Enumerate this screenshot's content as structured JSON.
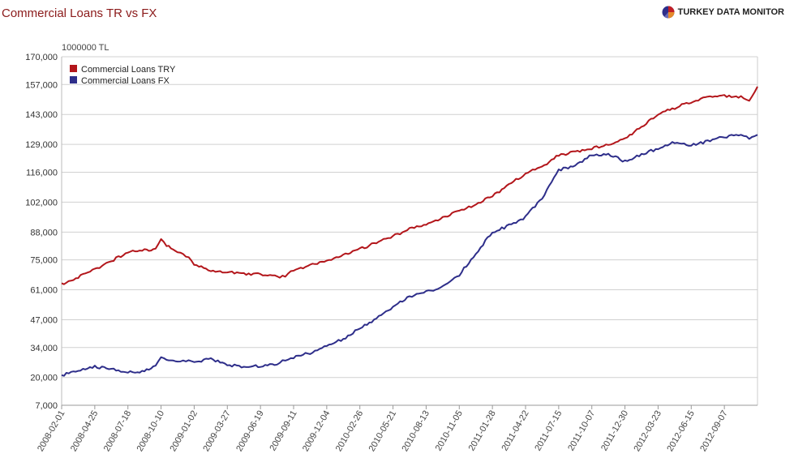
{
  "header": {
    "title": "Commercial Loans TR vs FX",
    "brand": "TURKEY DATA MONITOR",
    "brand_icon": "pie-chart-logo-icon"
  },
  "colors": {
    "title": "#8b1a1a",
    "try_series": "#b3161b",
    "fx_series": "#2e2e8a",
    "grid": "#d0d0d0"
  },
  "chart_data": {
    "type": "line",
    "ylabel": "1000000 TL",
    "ylim": [
      7000,
      170000
    ],
    "yticks": [
      "7,000",
      "20,000",
      "34,000",
      "47,000",
      "61,000",
      "75,000",
      "88,000",
      "102,000",
      "116,000",
      "129,000",
      "143,000",
      "157,000",
      "170,000"
    ],
    "ytick_values": [
      7000,
      20000,
      34000,
      47000,
      61000,
      75000,
      88000,
      102000,
      116000,
      129000,
      143000,
      157000,
      170000
    ],
    "xticks": [
      "2008-02-01",
      "2008-04-25",
      "2008-07-18",
      "2008-10-10",
      "2009-01-02",
      "2009-03-27",
      "2009-06-19",
      "2009-09-11",
      "2009-12-04",
      "2010-02-26",
      "2010-05-21",
      "2010-08-13",
      "2010-11-05",
      "2011-01-28",
      "2011-04-22",
      "2011-07-15",
      "2011-10-07",
      "2011-12-30",
      "2012-03-23",
      "2012-06-15",
      "2012-09-07"
    ],
    "x_end": "2012-11-30",
    "legend": "top-left",
    "grid": true,
    "series": [
      {
        "name": "Commercial Loans TRY",
        "points": [
          [
            "2008-02-01",
            63500
          ],
          [
            "2008-03-14",
            67000
          ],
          [
            "2008-04-25",
            70500
          ],
          [
            "2008-06-06",
            74500
          ],
          [
            "2008-07-18",
            78500
          ],
          [
            "2008-08-29",
            79500
          ],
          [
            "2008-09-26",
            80000
          ],
          [
            "2008-10-10",
            84500
          ],
          [
            "2008-10-24",
            82000
          ],
          [
            "2008-11-21",
            79000
          ],
          [
            "2008-12-12",
            77000
          ],
          [
            "2009-01-02",
            73000
          ],
          [
            "2009-02-13",
            70000
          ],
          [
            "2009-03-27",
            69500
          ],
          [
            "2009-05-08",
            68500
          ],
          [
            "2009-06-19",
            68500
          ],
          [
            "2009-07-31",
            67000
          ],
          [
            "2009-08-21",
            67500
          ],
          [
            "2009-09-11",
            70000
          ],
          [
            "2009-10-23",
            72500
          ],
          [
            "2009-12-04",
            75000
          ],
          [
            "2010-01-15",
            77000
          ],
          [
            "2010-02-26",
            80000
          ],
          [
            "2010-04-09",
            83000
          ],
          [
            "2010-05-21",
            86000
          ],
          [
            "2010-07-02",
            89500
          ],
          [
            "2010-08-13",
            91500
          ],
          [
            "2010-09-24",
            94500
          ],
          [
            "2010-11-05",
            98000
          ],
          [
            "2010-12-17",
            101000
          ],
          [
            "2011-01-28",
            105000
          ],
          [
            "2011-03-11",
            110000
          ],
          [
            "2011-04-22",
            115500
          ],
          [
            "2011-06-03",
            118500
          ],
          [
            "2011-07-15",
            124000
          ],
          [
            "2011-08-26",
            125500
          ],
          [
            "2011-10-07",
            127000
          ],
          [
            "2011-11-18",
            129000
          ],
          [
            "2011-12-30",
            132000
          ],
          [
            "2012-02-10",
            137000
          ],
          [
            "2012-03-23",
            143000
          ],
          [
            "2012-05-04",
            146000
          ],
          [
            "2012-06-15",
            149000
          ],
          [
            "2012-07-27",
            151000
          ],
          [
            "2012-09-07",
            151500
          ],
          [
            "2012-10-19",
            151000
          ],
          [
            "2012-11-09",
            150000
          ],
          [
            "2012-11-30",
            156000
          ]
        ]
      },
      {
        "name": "Commercial Loans FX",
        "points": [
          [
            "2008-02-01",
            21000
          ],
          [
            "2008-03-14",
            23000
          ],
          [
            "2008-04-25",
            25000
          ],
          [
            "2008-06-06",
            24000
          ],
          [
            "2008-07-18",
            22500
          ],
          [
            "2008-08-29",
            23000
          ],
          [
            "2008-09-26",
            25500
          ],
          [
            "2008-10-10",
            30000
          ],
          [
            "2008-10-24",
            28000
          ],
          [
            "2008-11-21",
            27500
          ],
          [
            "2008-12-12",
            28000
          ],
          [
            "2009-01-02",
            27500
          ],
          [
            "2009-02-13",
            28500
          ],
          [
            "2009-03-27",
            26000
          ],
          [
            "2009-05-08",
            25000
          ],
          [
            "2009-06-19",
            25500
          ],
          [
            "2009-07-31",
            26500
          ],
          [
            "2009-08-21",
            28000
          ],
          [
            "2009-09-11",
            29500
          ],
          [
            "2009-10-23",
            31500
          ],
          [
            "2009-12-04",
            34500
          ],
          [
            "2010-01-15",
            38000
          ],
          [
            "2010-02-26",
            43000
          ],
          [
            "2010-04-09",
            47500
          ],
          [
            "2010-05-21",
            53000
          ],
          [
            "2010-07-02",
            58000
          ],
          [
            "2010-08-13",
            60000
          ],
          [
            "2010-09-24",
            62500
          ],
          [
            "2010-11-05",
            68000
          ],
          [
            "2010-12-17",
            78000
          ],
          [
            "2011-01-28",
            88000
          ],
          [
            "2011-03-11",
            91000
          ],
          [
            "2011-04-22",
            95000
          ],
          [
            "2011-06-03",
            104000
          ],
          [
            "2011-07-15",
            117000
          ],
          [
            "2011-08-26",
            119000
          ],
          [
            "2011-10-07",
            124000
          ],
          [
            "2011-11-18",
            124500
          ],
          [
            "2011-12-30",
            121000
          ],
          [
            "2012-02-10",
            124500
          ],
          [
            "2012-03-23",
            127000
          ],
          [
            "2012-05-04",
            130000
          ],
          [
            "2012-06-15",
            128500
          ],
          [
            "2012-07-27",
            130500
          ],
          [
            "2012-09-07",
            132500
          ],
          [
            "2012-10-19",
            134000
          ],
          [
            "2012-11-09",
            132000
          ],
          [
            "2012-11-30",
            133500
          ]
        ]
      }
    ]
  }
}
